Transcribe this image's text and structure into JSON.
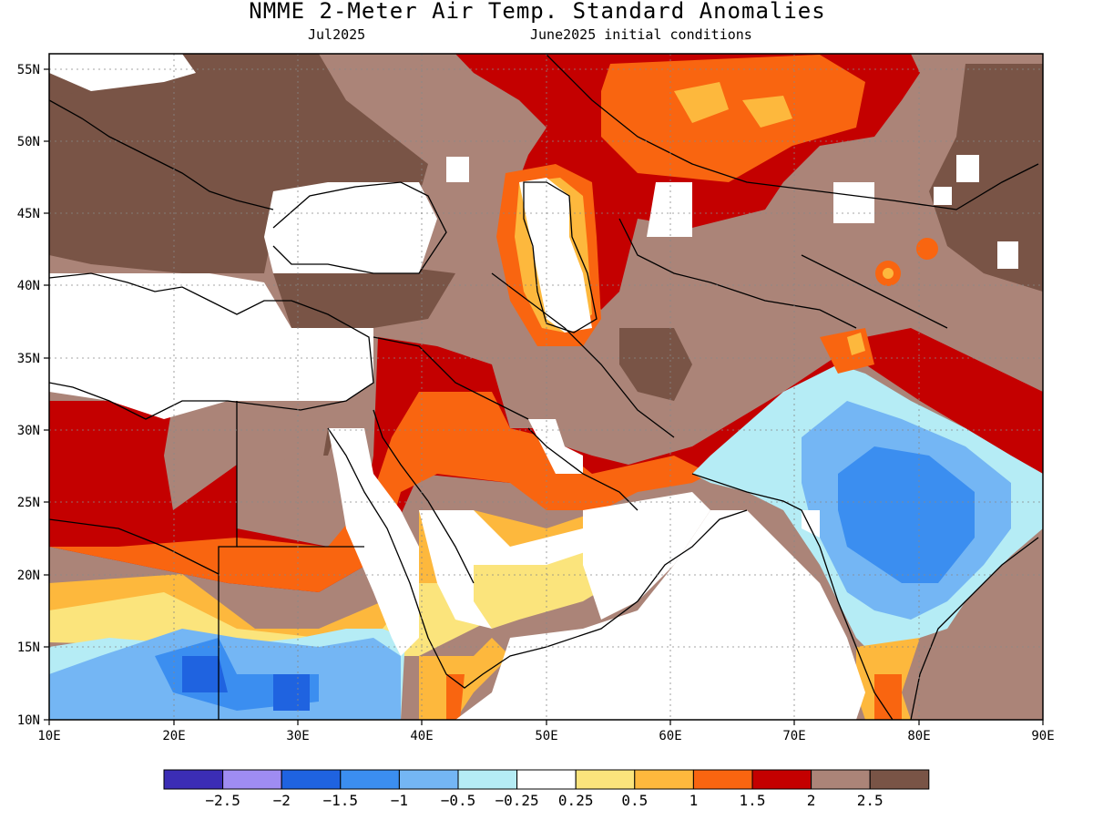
{
  "header": {
    "title": "NMME 2-Meter Air Temp. Standard Anomalies",
    "valid_month": "Jul2025",
    "initial_conditions": "June2025 initial conditions"
  },
  "map": {
    "lon_ticks": [
      "10E",
      "20E",
      "30E",
      "40E",
      "50E",
      "60E",
      "70E",
      "80E",
      "90E"
    ],
    "lat_ticks": [
      "10N",
      "15N",
      "20N",
      "25N",
      "30N",
      "35N",
      "40N",
      "45N",
      "50N",
      "55N"
    ]
  },
  "colorbar": {
    "colors": [
      "#3b2db5",
      "#9f8cf2",
      "#1f63e0",
      "#3b8ef0",
      "#74b6f4",
      "#b5ecf5",
      "#ffffff",
      "#fbe47c",
      "#fdb83d",
      "#f96510",
      "#c40000",
      "#ab8478",
      "#795446"
    ],
    "labels": [
      "-2.5",
      "-2",
      "-1.5",
      "-1",
      "-0.5",
      "-0.25",
      "0.25",
      "0.5",
      "1",
      "1.5",
      "2",
      "2.5"
    ]
  }
}
